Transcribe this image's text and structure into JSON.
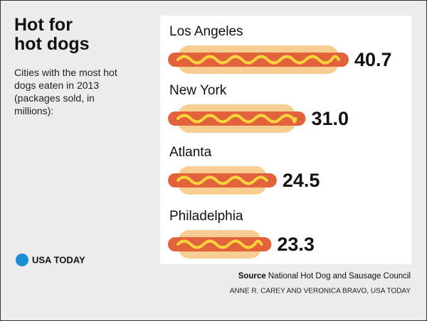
{
  "chart_data": {
    "type": "hotdog-bar",
    "title": "Hot for hot dogs",
    "subtitle": "Cities with the most hot dogs eaten in 2013 (packages sold, in millions):",
    "categories": [
      "Los Angeles",
      "New York",
      "Atlanta",
      "Philadelphia"
    ],
    "values": [
      40.7,
      31.0,
      24.5,
      23.3
    ],
    "value_labels": [
      "40.7",
      "31.0",
      "24.5",
      "23.3"
    ],
    "color": "#e2623c",
    "bun_color": "#f7cd92",
    "mustard_color": "#f9d43c",
    "source_label": "Source",
    "source": "National Hot Dog and Sausage Council",
    "credit": "ANNE R. CAREY AND VERONICA BRAVO, USA TODAY",
    "logo": "USA TODAY"
  }
}
